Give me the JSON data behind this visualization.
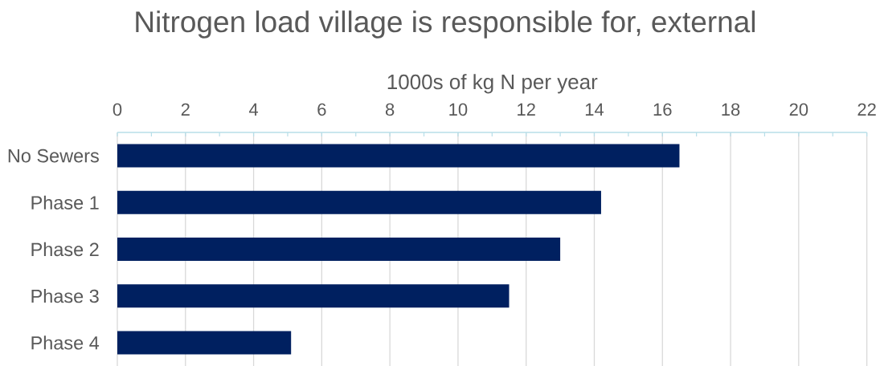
{
  "chart_data": {
    "type": "bar",
    "orientation": "horizontal",
    "title": "Nitrogen load village is responsible for, external",
    "xlabel": "1000s of kg N per year",
    "categories": [
      "No Sewers",
      "Phase 1",
      "Phase 2",
      "Phase 3",
      "Phase 4"
    ],
    "values": [
      16.5,
      14.2,
      13.0,
      11.5,
      5.1
    ],
    "color": "#002060",
    "xlim": [
      0,
      22
    ],
    "xticks": [
      0,
      {
        "value": 1,
        "label": null
      },
      2,
      {
        "value": 3,
        "label": null
      },
      4,
      {
        "value": 5,
        "label": null
      },
      6,
      {
        "value": 7,
        "label": null
      },
      8,
      {
        "value": 9,
        "label": null
      },
      10,
      {
        "value": 11,
        "label": null
      },
      12,
      {
        "value": 13,
        "label": null
      },
      14,
      {
        "value": 15,
        "label": null
      },
      16,
      {
        "value": 17,
        "label": null
      },
      18,
      {
        "value": 19,
        "label": null
      },
      20,
      {
        "value": 21,
        "label": null
      },
      22
    ],
    "grid": "x"
  }
}
